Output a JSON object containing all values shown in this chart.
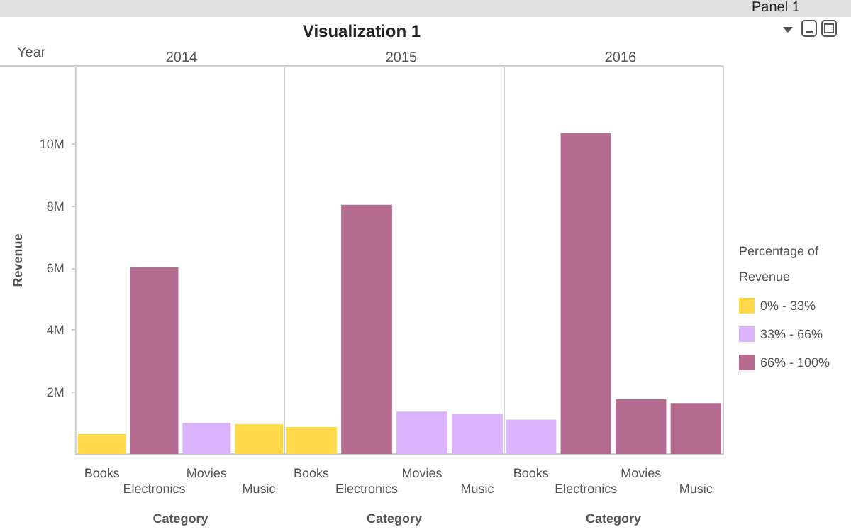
{
  "chart_data": [
    {
      "type": "bar",
      "title": "2014",
      "xlabel": "Category",
      "ylabel": "Revenue",
      "annotations": [
        "Panel 1",
        "Visualization 1",
        "Year"
      ],
      "categories": [
        "Books",
        "Electronics",
        "Movies",
        "Music"
      ],
      "series": [
        {
          "color": "#ffd94a",
          "values": [
            640000,
            null,
            null,
            960000
          ]
        },
        {
          "color": "#dbb4fb",
          "values": [
            null,
            null,
            1000000,
            null
          ]
        },
        {
          "color": "#b46b8f",
          "values": [
            null,
            6030000,
            null,
            null
          ]
        }
      ],
      "ylim": [
        0,
        12500000
      ],
      "yticks": [
        {
          "value": 2000000,
          "label": "2M"
        },
        {
          "value": 4000000,
          "label": "4M"
        },
        {
          "value": 6000000,
          "label": "6M"
        },
        {
          "value": 8000000,
          "label": "8M"
        },
        {
          "value": 10000000,
          "label": "10M"
        }
      ],
      "grid": false
    },
    {
      "type": "bar",
      "title": "2015",
      "xlabel": "Category",
      "categories": [
        "Books",
        "Electronics",
        "Movies",
        "Music"
      ],
      "series": [
        {
          "color": "#ffd94a",
          "values": [
            870000,
            null,
            null,
            null
          ]
        },
        {
          "color": "#dbb4fb",
          "values": [
            null,
            null,
            1370000,
            1290000
          ]
        },
        {
          "color": "#b46b8f",
          "values": [
            null,
            8040000,
            null,
            null
          ]
        }
      ],
      "ylim": [
        0,
        12500000
      ],
      "tick_labels": "x",
      "grid": false
    },
    {
      "type": "bar",
      "title": "2016",
      "xlabel": "Category",
      "legend_title": "Percentage of Revenue",
      "categories": [
        "Books",
        "Electronics",
        "Movies",
        "Music"
      ],
      "series": [
        {
          "name": "0% - 33%",
          "color": "#ffd94a",
          "values": [
            null,
            null,
            null,
            null
          ]
        },
        {
          "name": "33% - 66%",
          "color": "#dbb4fb",
          "values": [
            1110000,
            null,
            null,
            null
          ]
        },
        {
          "name": "66% - 100%",
          "color": "#b46b8f",
          "values": [
            null,
            10360000,
            1770000,
            1640000
          ]
        }
      ],
      "ylim": [
        0,
        12500000
      ],
      "tick_labels": "x",
      "grid": false,
      "legend": "right"
    }
  ]
}
